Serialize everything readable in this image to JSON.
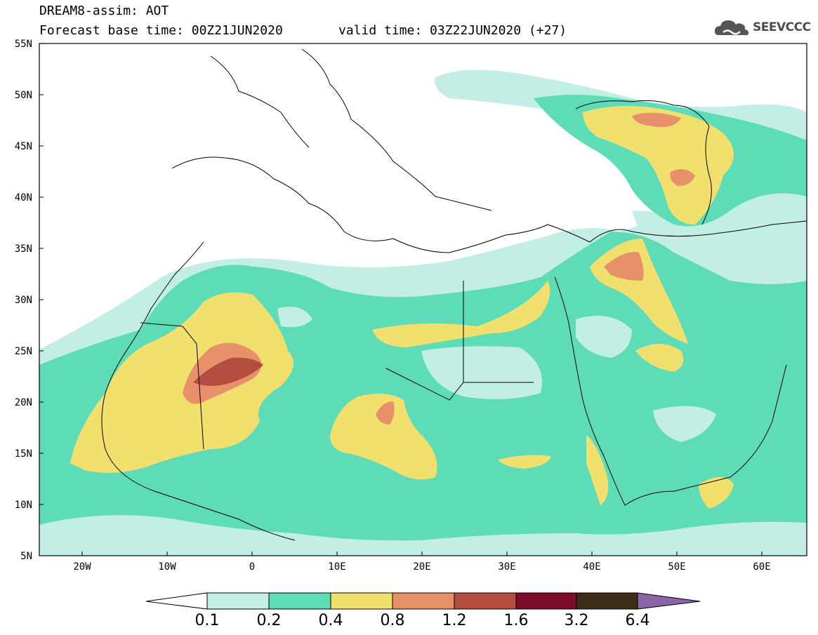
{
  "title": {
    "line1": "DREAM8-assim: AOT",
    "line2": "Forecast base time: 00Z21JUN2020",
    "valid": "valid time: 03Z22JUN2020 (+27)"
  },
  "logo": {
    "text": "SEEVCCC",
    "icon": "cloud-icon"
  },
  "map": {
    "lat_labels": [
      "55N",
      "50N",
      "45N",
      "40N",
      "35N",
      "30N",
      "25N",
      "20N",
      "15N",
      "10N",
      "5N"
    ],
    "lon_labels": [
      "20W",
      "10W",
      "0",
      "10E",
      "20E",
      "30E",
      "40E",
      "50E",
      "60E"
    ],
    "lon_range": [
      -25,
      65
    ],
    "lat_range": [
      5,
      55
    ]
  },
  "colorbar": {
    "labels": [
      "0.1",
      "0.2",
      "0.4",
      "0.8",
      "1.2",
      "1.6",
      "3.2",
      "6.4"
    ],
    "colors": [
      "#ffffff",
      "#c3eee6",
      "#5ddcb7",
      "#f2e06e",
      "#e8906a",
      "#b34d40",
      "#7b0d2a",
      "#3e2b18",
      "#8a63a8"
    ]
  },
  "legend_colors": {
    "c01": "#c3eee6",
    "c02": "#5ddcb7",
    "c04": "#f2e06e",
    "c08": "#e8906a",
    "c12": "#b34d40"
  }
}
